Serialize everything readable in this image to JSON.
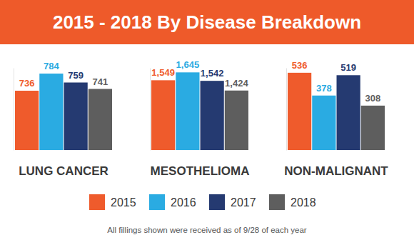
{
  "title": "2015 - 2018 By Disease Breakdown",
  "footnote": "All fillings shown were received as of 9/28 of each year",
  "chart_data": [
    {
      "type": "bar",
      "title": "LUNG CANCER",
      "categories": [
        null
      ],
      "ylim": [
        570,
        800
      ],
      "tick_labels": false,
      "data_labels": true,
      "legend": "bottom",
      "series": [
        {
          "name": "2015",
          "color": "#ef5b2c",
          "values": [
            736
          ]
        },
        {
          "name": "2016",
          "color": "#2aabe2",
          "values": [
            784
          ]
        },
        {
          "name": "2017",
          "color": "#253a71",
          "values": [
            759
          ]
        },
        {
          "name": "2018",
          "color": "#5e5e5e",
          "values": [
            741
          ]
        }
      ]
    },
    {
      "type": "bar",
      "title": "MESOTHELIOMA",
      "categories": [
        null
      ],
      "ylim": [
        700,
        1700
      ],
      "tick_labels": false,
      "data_labels": true,
      "series": [
        {
          "name": "2015",
          "color": "#ef5b2c",
          "values": [
            1549
          ],
          "value_labels": [
            "1,549"
          ]
        },
        {
          "name": "2016",
          "color": "#2aabe2",
          "values": [
            1645
          ],
          "value_labels": [
            "1,645"
          ]
        },
        {
          "name": "2017",
          "color": "#253a71",
          "values": [
            1542
          ],
          "value_labels": [
            "1,542"
          ]
        },
        {
          "name": "2018",
          "color": "#5e5e5e",
          "values": [
            1424
          ],
          "value_labels": [
            "1,424"
          ]
        }
      ]
    },
    {
      "type": "bar",
      "title": "NON-MALIGNANT",
      "categories": [
        null
      ],
      "ylim": [
        0,
        570
      ],
      "tick_labels": false,
      "data_labels": true,
      "series": [
        {
          "name": "2015",
          "color": "#ef5b2c",
          "values": [
            536
          ]
        },
        {
          "name": "2016",
          "color": "#2aabe2",
          "values": [
            378
          ]
        },
        {
          "name": "2017",
          "color": "#253a71",
          "values": [
            519
          ]
        },
        {
          "name": "2018",
          "color": "#5e5e5e",
          "values": [
            308
          ]
        }
      ]
    }
  ]
}
